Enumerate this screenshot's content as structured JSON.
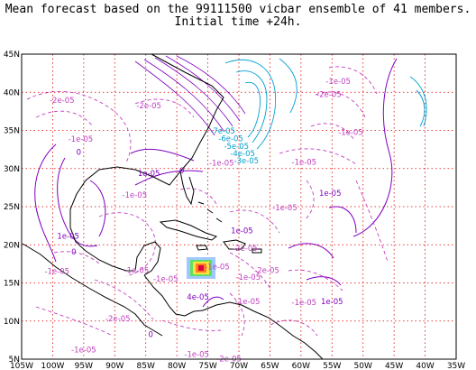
{
  "chart_data": {
    "type": "contour-map",
    "title": "Mean forecast based on the 99111500 vicbar ensemble of 41 members.",
    "subtitle": "Initial time +24h.",
    "xaxis": {
      "range": [
        -105,
        -35
      ],
      "ticks": [
        {
          "value": -105,
          "label": "105W"
        },
        {
          "value": -100,
          "label": "100W"
        },
        {
          "value": -95,
          "label": "95W"
        },
        {
          "value": -90,
          "label": "90W"
        },
        {
          "value": -85,
          "label": "85W"
        },
        {
          "value": -80,
          "label": "80W"
        },
        {
          "value": -75,
          "label": "75W"
        },
        {
          "value": -70,
          "label": "70W"
        },
        {
          "value": -65,
          "label": "65W"
        },
        {
          "value": -60,
          "label": "60W"
        },
        {
          "value": -55,
          "label": "55W"
        },
        {
          "value": -50,
          "label": "50W"
        },
        {
          "value": -45,
          "label": "45W"
        },
        {
          "value": -40,
          "label": "40W"
        },
        {
          "value": -35,
          "label": "35W"
        }
      ]
    },
    "yaxis": {
      "range": [
        5,
        45
      ],
      "ticks": [
        {
          "value": 5,
          "label": "5N"
        },
        {
          "value": 10,
          "label": "10N"
        },
        {
          "value": 15,
          "label": "15N"
        },
        {
          "value": 20,
          "label": "20N"
        },
        {
          "value": 25,
          "label": "25N"
        },
        {
          "value": 30,
          "label": "30N"
        },
        {
          "value": 35,
          "label": "35N"
        },
        {
          "value": 40,
          "label": "40N"
        },
        {
          "value": 45,
          "label": "45N"
        }
      ]
    },
    "grid": true,
    "colors": {
      "grid": "#e00000",
      "positive_contour": "#8000c0",
      "negative_contour": "#c040c0",
      "cold_contour": "#00a0d0",
      "coast": "#000000"
    },
    "contour_labels": [
      {
        "text": "-2e-05",
        "lon": -98.5,
        "lat": 38.6,
        "kind": "neg"
      },
      {
        "text": "-2e-05",
        "lon": -84.5,
        "lat": 37.9,
        "kind": "neg"
      },
      {
        "text": "-1e-05",
        "lon": -95.5,
        "lat": 33.5,
        "kind": "neg"
      },
      {
        "text": "0",
        "lon": -95.8,
        "lat": 31.8,
        "kind": "pos"
      },
      {
        "text": "1e-05",
        "lon": -84.5,
        "lat": 29.0,
        "kind": "pos"
      },
      {
        "text": "-1e-05",
        "lon": -86.8,
        "lat": 26.2,
        "kind": "neg"
      },
      {
        "text": "1e-05",
        "lon": -97.5,
        "lat": 20.8,
        "kind": "pos"
      },
      {
        "text": "0",
        "lon": -96.6,
        "lat": 18.7,
        "kind": "pos"
      },
      {
        "text": "-1e-05",
        "lon": -99.3,
        "lat": 16.2,
        "kind": "neg"
      },
      {
        "text": "-1e-05",
        "lon": -86.5,
        "lat": 16.3,
        "kind": "neg"
      },
      {
        "text": "-1e-05",
        "lon": -81.8,
        "lat": 15.2,
        "kind": "neg"
      },
      {
        "text": "-2e-05",
        "lon": -89.5,
        "lat": 10.0,
        "kind": "neg"
      },
      {
        "text": "0",
        "lon": -84.2,
        "lat": 7.9,
        "kind": "pos"
      },
      {
        "text": "-1e-05",
        "lon": -95.0,
        "lat": 5.9,
        "kind": "neg"
      },
      {
        "text": "-1e-05",
        "lon": -76.8,
        "lat": 5.3,
        "kind": "neg"
      },
      {
        "text": "-2e-05",
        "lon": -71.6,
        "lat": 4.7,
        "kind": "neg"
      },
      {
        "text": "1e-05",
        "lon": -69.5,
        "lat": 21.5,
        "kind": "pos"
      },
      {
        "text": "-2e-05",
        "lon": -69.0,
        "lat": 19.2,
        "kind": "neg"
      },
      {
        "text": "-1e-05",
        "lon": -73.5,
        "lat": 16.8,
        "kind": "neg"
      },
      {
        "text": "-2e-05",
        "lon": -65.5,
        "lat": 16.3,
        "kind": "neg"
      },
      {
        "text": "-1e-05",
        "lon": -68.6,
        "lat": 12.2,
        "kind": "neg"
      },
      {
        "text": "-1e-05",
        "lon": -59.5,
        "lat": 12.1,
        "kind": "neg"
      },
      {
        "text": "1e-05",
        "lon": -55.0,
        "lat": 12.2,
        "kind": "pos"
      },
      {
        "text": "-1e-05",
        "lon": -62.6,
        "lat": 24.5,
        "kind": "neg"
      },
      {
        "text": "1e-05",
        "lon": -55.3,
        "lat": 26.4,
        "kind": "pos"
      },
      {
        "text": "-1e-05",
        "lon": -59.5,
        "lat": 30.5,
        "kind": "neg"
      },
      {
        "text": "-1e-05",
        "lon": -72.8,
        "lat": 30.4,
        "kind": "neg"
      },
      {
        "text": "0",
        "lon": -79.2,
        "lat": 29.4,
        "kind": "pos"
      },
      {
        "text": "-1e-05",
        "lon": -54.0,
        "lat": 41.1,
        "kind": "neg"
      },
      {
        "text": "-2e-05",
        "lon": -55.5,
        "lat": 39.4,
        "kind": "neg"
      },
      {
        "text": "-1e-05",
        "lon": -52.0,
        "lat": 34.4,
        "kind": "neg"
      },
      {
        "text": "-7e-05",
        "lon": -72.6,
        "lat": 34.6,
        "kind": "cold"
      },
      {
        "text": "-6e-05",
        "lon": -71.3,
        "lat": 33.6,
        "kind": "cold"
      },
      {
        "text": "-5e-05",
        "lon": -70.4,
        "lat": 32.6,
        "kind": "cold"
      },
      {
        "text": "-4e-05",
        "lon": -69.4,
        "lat": 31.6,
        "kind": "cold"
      },
      {
        "text": "-3e-05",
        "lon": -68.8,
        "lat": 30.7,
        "kind": "cold"
      },
      {
        "text": "4e-05",
        "lon": -76.6,
        "lat": 12.8,
        "kind": "pos"
      },
      {
        "text": "-1e-05",
        "lon": -68.5,
        "lat": 15.4,
        "kind": "neg"
      }
    ]
  }
}
